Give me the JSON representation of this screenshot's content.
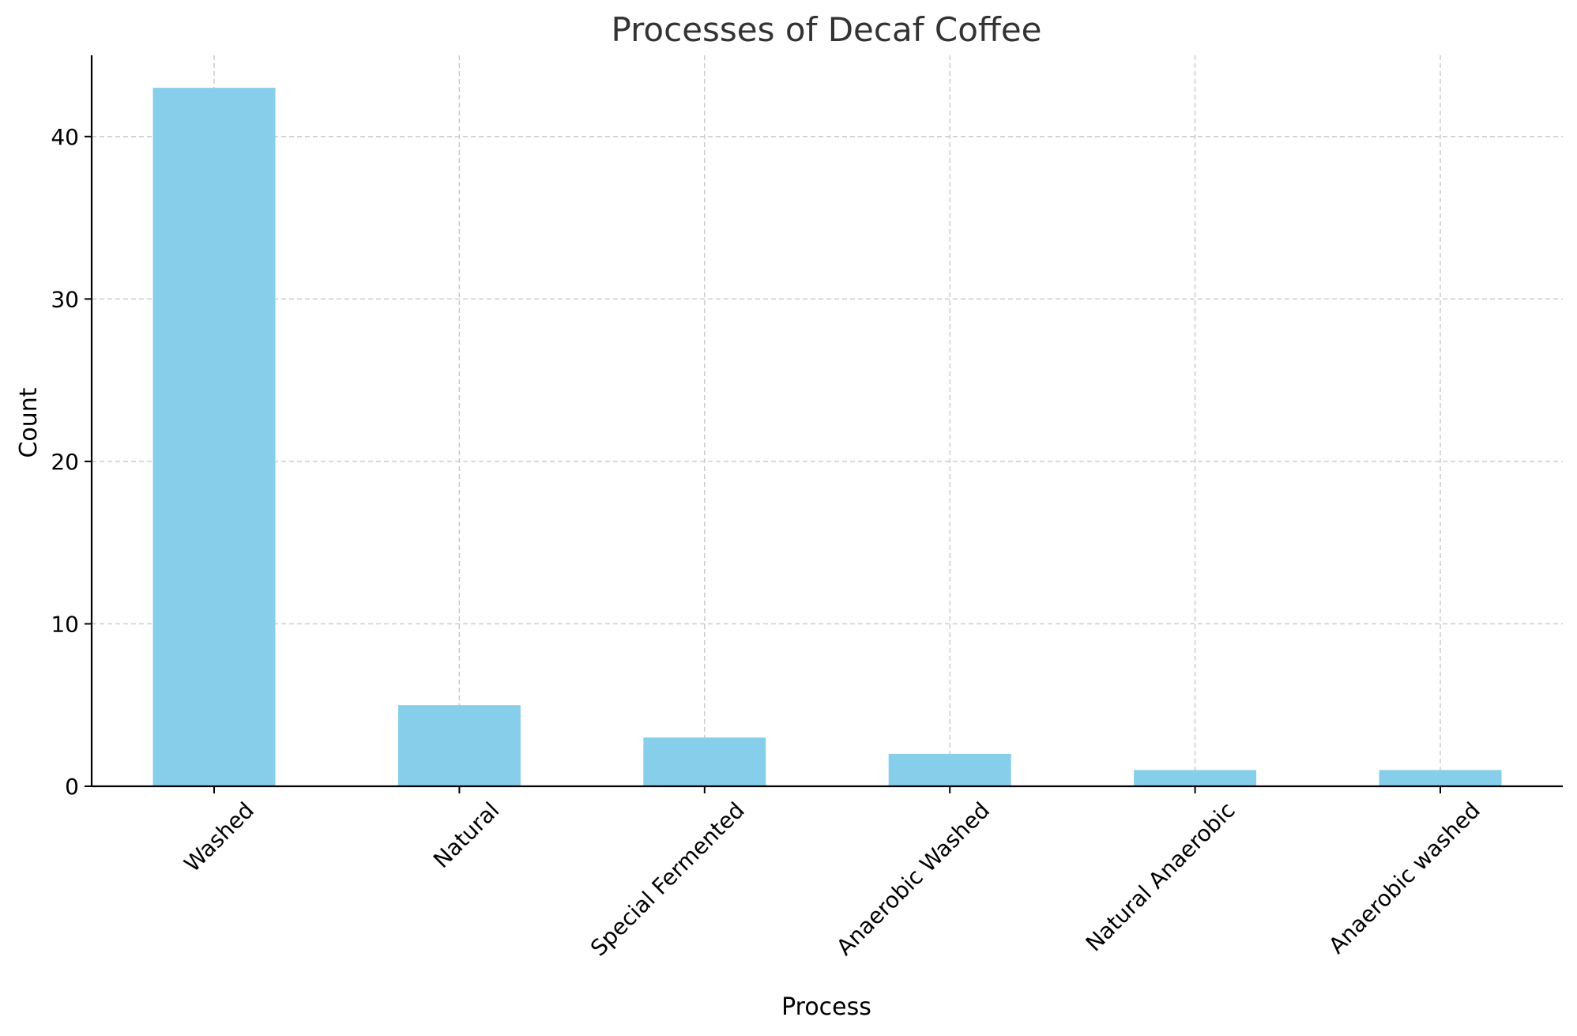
{
  "chart_data": {
    "type": "bar",
    "title": "Processes of Decaf Coffee",
    "xlabel": "Process",
    "ylabel": "Count",
    "categories": [
      "Washed",
      "Natural",
      "Special Fermented",
      "Anaerobic Washed",
      "Natural Anaerobic",
      "Anaerobic washed"
    ],
    "values": [
      43,
      5,
      3,
      2,
      1,
      1
    ],
    "ylim": [
      0,
      45
    ],
    "yticks": [
      "0",
      "10",
      "20",
      "30",
      "40"
    ],
    "grid": true,
    "bar_color": "#87ceeb"
  }
}
